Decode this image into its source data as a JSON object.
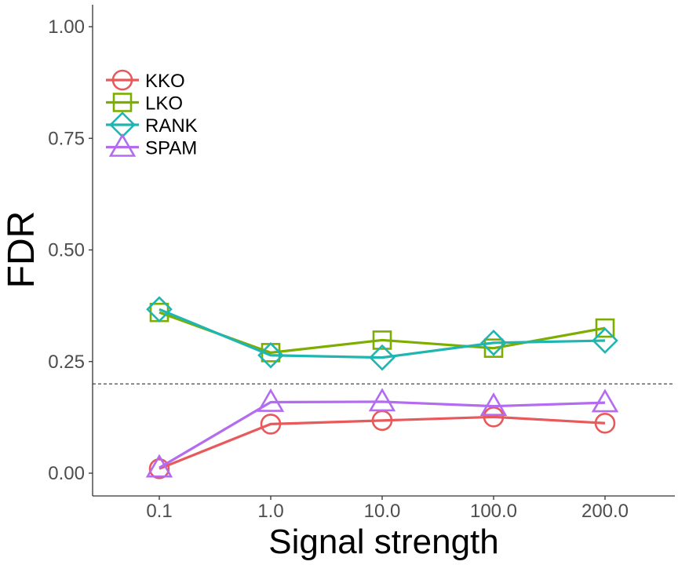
{
  "chart_data": {
    "type": "line",
    "x": [
      "0.1",
      "1.0",
      "10.0",
      "100.0",
      "200.0"
    ],
    "xlabel": "Signal strength",
    "ylabel": "FDR",
    "ylim": [
      0,
      1
    ],
    "yticks": [
      "0.00",
      "0.25",
      "0.50",
      "0.75",
      "1.00"
    ],
    "reference_line": 0.2,
    "legend_position": "top-left",
    "grid": false,
    "series": [
      {
        "name": "KKO",
        "color": "#E8595B",
        "marker": "circle",
        "values": [
          0.01,
          0.11,
          0.118,
          0.126,
          0.112
        ]
      },
      {
        "name": "LKO",
        "color": "#7CAE00",
        "marker": "square",
        "values": [
          0.36,
          0.27,
          0.298,
          0.28,
          0.325
        ]
      },
      {
        "name": "RANK",
        "color": "#1FB5B1",
        "marker": "diamond",
        "values": [
          0.367,
          0.264,
          0.259,
          0.292,
          0.297
        ]
      },
      {
        "name": "SPAM",
        "color": "#B36BF0",
        "marker": "triangle",
        "values": [
          0.012,
          0.159,
          0.16,
          0.15,
          0.158
        ]
      }
    ]
  }
}
